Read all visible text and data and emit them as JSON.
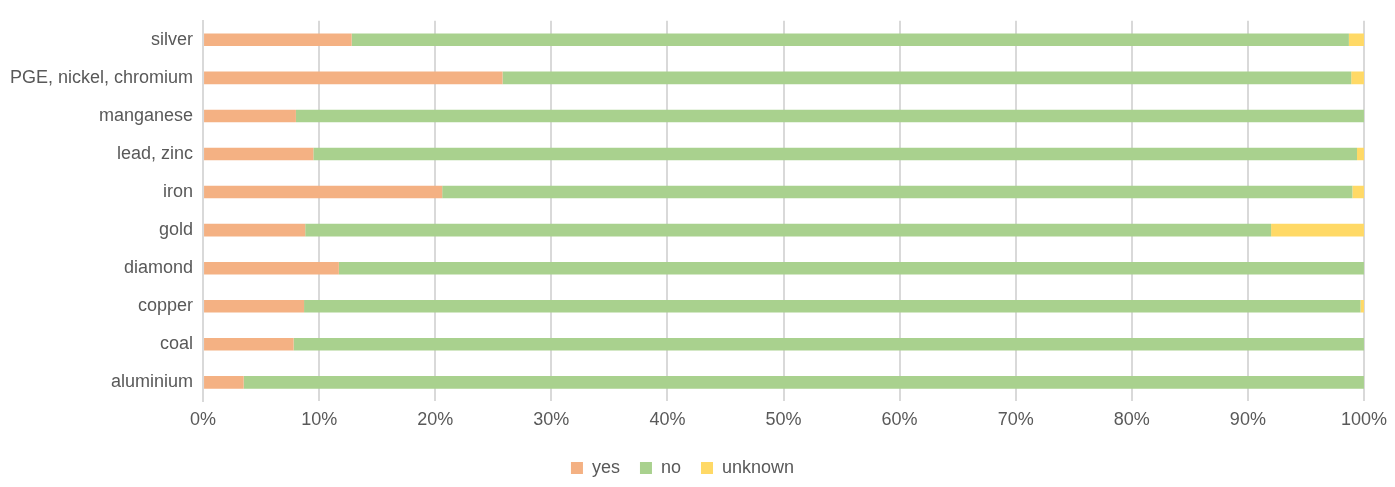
{
  "chart_data": {
    "type": "bar",
    "orientation": "horizontal",
    "stacked": true,
    "categories": [
      "silver",
      "PGE, nickel, chromium",
      "manganese",
      "lead, zinc",
      "iron",
      "gold",
      "diamond",
      "copper",
      "coal",
      "aluminium"
    ],
    "series": [
      {
        "name": "yes",
        "color": "#f4b183",
        "values": [
          12.8,
          25.8,
          8.0,
          9.5,
          20.6,
          8.8,
          11.7,
          8.7,
          7.8,
          3.5
        ]
      },
      {
        "name": "no",
        "color": "#a9d18e",
        "values": [
          85.9,
          73.1,
          92.0,
          89.9,
          78.4,
          83.2,
          88.3,
          91.0,
          92.2,
          96.5
        ]
      },
      {
        "name": "unknown",
        "color": "#ffd966",
        "values": [
          1.3,
          1.1,
          0,
          0.6,
          1.0,
          8.0,
          0,
          0.3,
          0,
          0
        ]
      }
    ],
    "xlim": [
      0,
      100
    ],
    "xticks": [
      {
        "value": 0,
        "label": "0%"
      },
      {
        "value": 10,
        "label": "10%"
      },
      {
        "value": 20,
        "label": "20%"
      },
      {
        "value": 30,
        "label": "30%"
      },
      {
        "value": 40,
        "label": "40%"
      },
      {
        "value": 50,
        "label": "50%"
      },
      {
        "value": 60,
        "label": "60%"
      },
      {
        "value": 70,
        "label": "70%"
      },
      {
        "value": 80,
        "label": "80%"
      },
      {
        "value": 90,
        "label": "90%"
      },
      {
        "value": 100,
        "label": "100%"
      }
    ],
    "grid": "x",
    "legend": "bottom"
  }
}
